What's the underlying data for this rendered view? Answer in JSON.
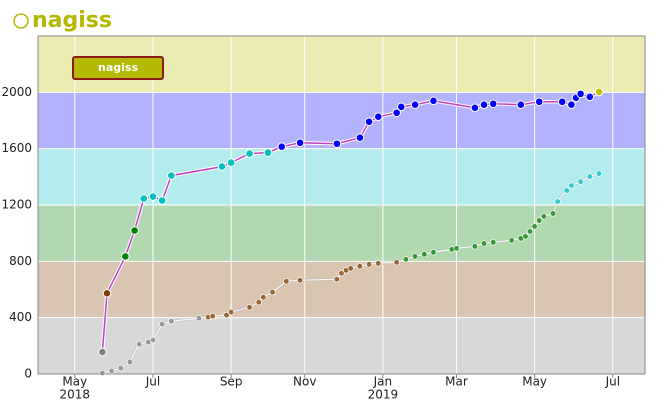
{
  "chart_data": {
    "type": "line",
    "title": "nagiss",
    "title_color": "#b5b800",
    "xlim": [
      2018.25,
      2019.57
    ],
    "xticks": [
      {
        "value": 2018.33,
        "label": "May",
        "year": "2018"
      },
      {
        "value": 2018.5,
        "label": "Jul"
      },
      {
        "value": 2018.67,
        "label": "Sep"
      },
      {
        "value": 2018.83,
        "label": "Nov"
      },
      {
        "value": 2019.0,
        "label": "Jan",
        "year": "2019"
      },
      {
        "value": 2019.16,
        "label": "Mar"
      },
      {
        "value": 2019.33,
        "label": "May"
      },
      {
        "value": 2019.5,
        "label": "Jul"
      }
    ],
    "ylim": [
      0,
      2400
    ],
    "yticks": [
      0,
      400,
      800,
      1200,
      1600,
      2000
    ],
    "grid": true,
    "legend": "top-left",
    "bands": [
      {
        "from": 0,
        "to": 400,
        "fill": "#d8d8d8",
        "point": "#808080"
      },
      {
        "from": 400,
        "to": 800,
        "fill": "#d8c5b2",
        "point": "#804000"
      },
      {
        "from": 800,
        "to": 1200,
        "fill": "#b2d8b2",
        "point": "#008000"
      },
      {
        "from": 1200,
        "to": 1600,
        "fill": "#b2ecec",
        "point": "#00c0c0"
      },
      {
        "from": 1600,
        "to": 2000,
        "fill": "#b2b2ff",
        "point": "#0000ff"
      },
      {
        "from": 2000,
        "to": 2400,
        "fill": "#ececb2",
        "point": "#c0c000"
      }
    ],
    "series": [
      {
        "name": "nagiss",
        "color": "#c040c0",
        "legend_fill": "#b5b800",
        "legend_stroke": "#8b1a1a",
        "x": [
          2018.39,
          2018.4,
          2018.44,
          2018.46,
          2018.48,
          2018.5,
          2018.52,
          2018.54,
          2018.65,
          2018.67,
          2018.71,
          2018.75,
          2018.78,
          2018.82,
          2018.9,
          2018.95,
          2018.97,
          2018.99,
          2019.03,
          2019.04,
          2019.07,
          2019.11,
          2019.2,
          2019.22,
          2019.24,
          2019.3,
          2019.34,
          2019.39,
          2019.41,
          2019.42,
          2019.43,
          2019.45,
          2019.47
        ],
        "values": [
          156,
          573,
          835,
          1019,
          1246,
          1260,
          1232,
          1409,
          1473,
          1501,
          1565,
          1572,
          1614,
          1642,
          1635,
          1678,
          1791,
          1827,
          1855,
          1897,
          1912,
          1940,
          1890,
          1912,
          1919,
          1912,
          1933,
          1933,
          1912,
          1961,
          1989,
          1968,
          2003
        ]
      },
      {
        "color": "#ffffff",
        "x": [
          2018.39,
          2018.41,
          2018.43,
          2018.45,
          2018.47,
          2018.49,
          2018.5,
          2018.52,
          2018.54,
          2018.6,
          2018.62,
          2018.63,
          2018.66,
          2018.67,
          2018.71,
          2018.73,
          2018.74,
          2018.76,
          2018.79,
          2018.82,
          2018.9,
          2018.91,
          2018.92,
          2018.93,
          2018.95,
          2018.97,
          2018.99,
          2019.03,
          2019.05,
          2019.07,
          2019.09,
          2019.11,
          2019.15,
          2019.16,
          2019.2,
          2019.22,
          2019.24,
          2019.28,
          2019.3,
          2019.31,
          2019.32,
          2019.33,
          2019.34,
          2019.35,
          2019.37,
          2019.38,
          2019.4,
          2019.41,
          2019.43,
          2019.45,
          2019.47
        ],
        "values": [
          7,
          21,
          42,
          85,
          212,
          227,
          241,
          354,
          375,
          396,
          404,
          411,
          418,
          439,
          474,
          510,
          545,
          581,
          658,
          665,
          673,
          715,
          736,
          750,
          765,
          779,
          786,
          793,
          814,
          835,
          850,
          864,
          885,
          892,
          906,
          927,
          935,
          949,
          963,
          977,
          1012,
          1048,
          1090,
          1119,
          1140,
          1225,
          1303,
          1338,
          1366,
          1402,
          1423
        ]
      }
    ]
  }
}
